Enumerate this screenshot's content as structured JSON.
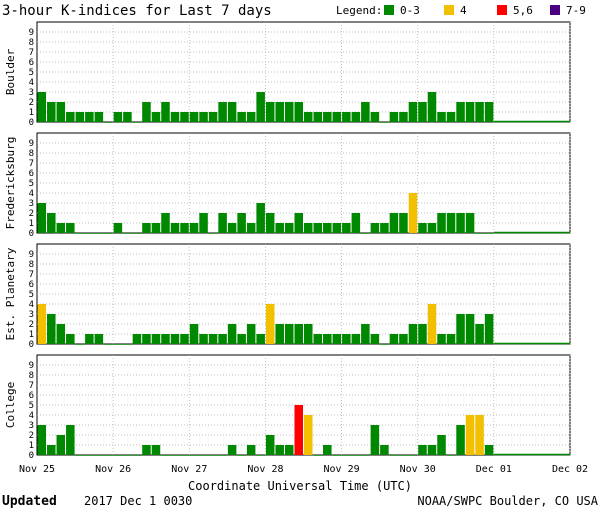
{
  "header": {
    "title": "3-hour K-indices for Last 7 days",
    "legend_label": "Legend:",
    "legend_items": [
      {
        "label": "0-3",
        "color": "#008800"
      },
      {
        "label": "4",
        "color": "#f2c000"
      },
      {
        "label": "5,6",
        "color": "#ff0000"
      },
      {
        "label": "7-9",
        "color": "#4b0082"
      }
    ]
  },
  "footer": {
    "updated_label": "Updated",
    "updated_value": "2017 Dec  1 0030",
    "source": "NOAA/SWPC Boulder, CO USA"
  },
  "chart_data": {
    "type": "bar",
    "xlabel": "Coordinate Universal Time (UTC)",
    "x_ticks": [
      "Nov 25",
      "Nov 26",
      "Nov 27",
      "Nov 28",
      "Nov 29",
      "Nov 30",
      "Dec 01",
      "Dec 02"
    ],
    "ylim": [
      0,
      9
    ],
    "y_ticks": [
      "0",
      "1",
      "2",
      "3",
      "4",
      "5",
      "6",
      "7",
      "8",
      "9"
    ],
    "bins_per_day": 8,
    "days": 7,
    "grid": true,
    "colors": {
      "quiet": "#008800",
      "active": "#f2c000",
      "storm": "#ff0000",
      "severe": "#4b0082"
    },
    "panels": [
      {
        "name": "Boulder",
        "values": [
          3,
          2,
          2,
          1,
          1,
          1,
          1,
          0,
          1,
          1,
          0,
          2,
          1,
          2,
          1,
          1,
          1,
          1,
          1,
          2,
          2,
          1,
          1,
          3,
          2,
          2,
          2,
          2,
          1,
          1,
          1,
          1,
          1,
          1,
          2,
          1,
          0,
          1,
          1,
          2,
          2,
          3,
          1,
          1,
          2,
          2,
          2,
          2
        ]
      },
      {
        "name": "Fredericksburg",
        "values": [
          3,
          2,
          1,
          1,
          0,
          0,
          0,
          0,
          1,
          0,
          0,
          1,
          1,
          2,
          1,
          1,
          1,
          2,
          0,
          2,
          1,
          2,
          1,
          3,
          2,
          1,
          1,
          2,
          1,
          1,
          1,
          1,
          1,
          2,
          0,
          1,
          1,
          2,
          2,
          4,
          1,
          1,
          2,
          2,
          2,
          2,
          0,
          0
        ]
      },
      {
        "name": "Est. Planetary",
        "values": [
          4,
          3,
          2,
          1,
          0,
          1,
          1,
          0,
          0,
          0,
          1,
          1,
          1,
          1,
          1,
          1,
          2,
          1,
          1,
          1,
          2,
          1,
          2,
          1,
          4,
          2,
          2,
          2,
          2,
          1,
          1,
          1,
          1,
          1,
          2,
          1,
          0,
          1,
          1,
          2,
          2,
          4,
          1,
          1,
          3,
          3,
          2,
          3
        ]
      },
      {
        "name": "College",
        "values": [
          3,
          1,
          2,
          3,
          0,
          0,
          0,
          0,
          0,
          0,
          0,
          1,
          1,
          0,
          0,
          0,
          0,
          0,
          0,
          0,
          1,
          0,
          1,
          0,
          2,
          1,
          1,
          5,
          4,
          0,
          1,
          0,
          0,
          0,
          0,
          3,
          1,
          0,
          0,
          0,
          1,
          1,
          2,
          0,
          3,
          4,
          4,
          1
        ]
      }
    ]
  }
}
